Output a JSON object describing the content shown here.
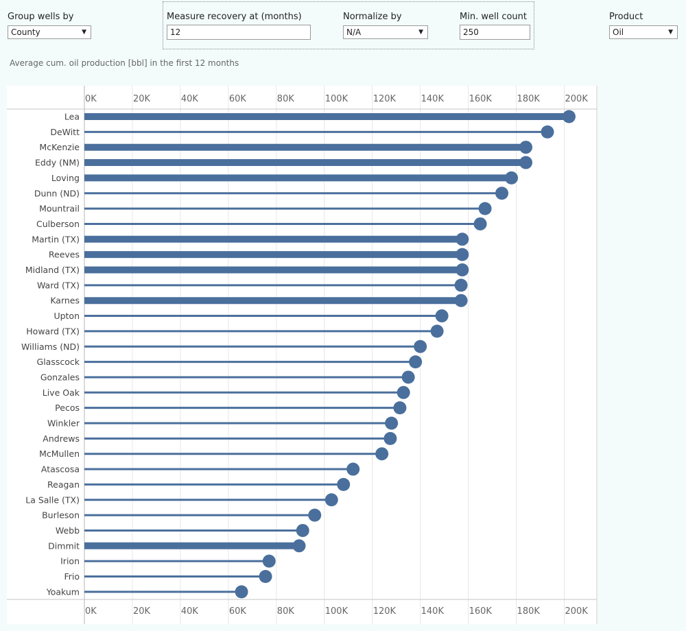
{
  "controls": {
    "group_by": {
      "label": "Group wells by",
      "value": "County"
    },
    "recovery": {
      "label": "Measure recovery at (months)",
      "value": "12"
    },
    "normalize": {
      "label": "Normalize by",
      "value": "N/A"
    },
    "min_wells": {
      "label": "Min. well count",
      "value": "250"
    },
    "product": {
      "label": "Product",
      "value": "Oil"
    }
  },
  "chart_data": {
    "type": "lollipop",
    "title": "Average cum. oil production [bbl] in the first 12 months",
    "categories": [
      "Lea",
      "DeWitt",
      "McKenzie",
      "Eddy (NM)",
      "Loving",
      "Dunn (ND)",
      "Mountrail",
      "Culberson",
      "Martin (TX)",
      "Reeves",
      "Midland (TX)",
      "Ward (TX)",
      "Karnes",
      "Upton",
      "Howard (TX)",
      "Williams (ND)",
      "Glasscock",
      "Gonzales",
      "Live Oak",
      "Pecos",
      "Winkler",
      "Andrews",
      "McMullen",
      "Atascosa",
      "Reagan",
      "La Salle (TX)",
      "Burleson",
      "Webb",
      "Dimmit",
      "Irion",
      "Frio",
      "Yoakum"
    ],
    "values": [
      202000,
      193000,
      184000,
      184000,
      178000,
      174000,
      167000,
      165000,
      157500,
      157500,
      157500,
      157000,
      157000,
      149000,
      147000,
      140000,
      138000,
      135000,
      133000,
      131500,
      128000,
      127500,
      124000,
      112000,
      108000,
      103000,
      96000,
      91000,
      89500,
      77000,
      75500,
      65500
    ],
    "thick_stem": [
      true,
      false,
      true,
      true,
      true,
      false,
      false,
      false,
      true,
      true,
      true,
      false,
      true,
      false,
      false,
      false,
      false,
      false,
      false,
      false,
      false,
      false,
      false,
      false,
      false,
      false,
      false,
      false,
      true,
      false,
      false,
      false
    ],
    "xlim": [
      0,
      210000
    ],
    "x_ticks": [
      0,
      20000,
      40000,
      60000,
      80000,
      100000,
      120000,
      140000,
      160000,
      180000,
      200000
    ],
    "x_tick_labels": [
      "0K",
      "20K",
      "40K",
      "60K",
      "80K",
      "100K",
      "120K",
      "140K",
      "160K",
      "180K",
      "200K"
    ],
    "series_color": "#4a6f9c",
    "grid": true,
    "x_axis_positions": [
      "top",
      "bottom"
    ]
  }
}
